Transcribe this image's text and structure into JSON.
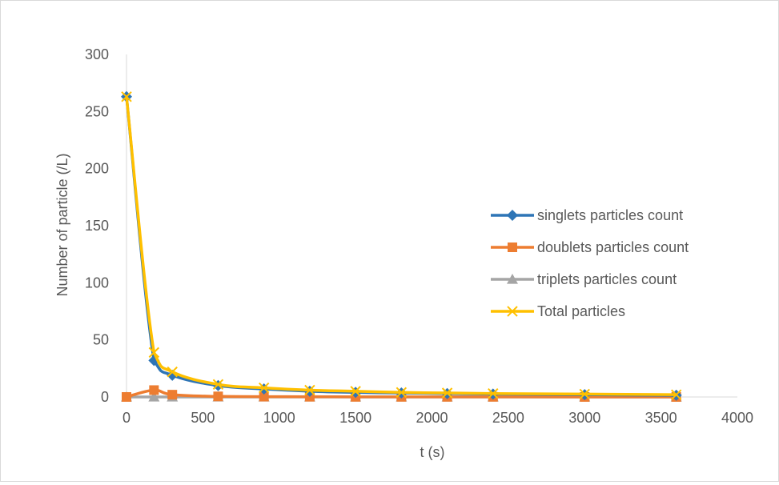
{
  "chart_data": {
    "type": "line",
    "title": "",
    "xlabel": "t (s)",
    "ylabel": "Number of particle (/L)",
    "xlim": [
      0,
      4000
    ],
    "ylim": [
      0,
      300
    ],
    "xticks": [
      0,
      500,
      1000,
      1500,
      2000,
      2500,
      3000,
      3500,
      4000
    ],
    "yticks": [
      0,
      50,
      100,
      150,
      200,
      250,
      300
    ],
    "grid": false,
    "legend_position": "right",
    "x": [
      0,
      180,
      300,
      600,
      900,
      1200,
      1500,
      1800,
      2100,
      2400,
      3000,
      3600
    ],
    "series": [
      {
        "name": "singlets particles count",
        "color": "#2e75b6",
        "marker": "diamond",
        "values": [
          263,
          32,
          19,
          10,
          7,
          5,
          4,
          3.5,
          3,
          2.5,
          2,
          1.5
        ]
      },
      {
        "name": "doublets particles count",
        "color": "#ed7d31",
        "marker": "square",
        "values": [
          0,
          6,
          2,
          0.5,
          0.3,
          0.2,
          0.1,
          0.1,
          0.1,
          0.1,
          0,
          0
        ]
      },
      {
        "name": "triplets particles count",
        "color": "#a5a5a5",
        "marker": "triangle",
        "values": [
          0,
          0,
          0,
          0,
          0,
          0,
          0,
          0,
          0,
          0,
          0,
          0
        ]
      },
      {
        "name": "Total particles",
        "color": "#ffc000",
        "marker": "x",
        "values": [
          263,
          39,
          22,
          11,
          8,
          6,
          5,
          4,
          3.5,
          3,
          2.5,
          2
        ]
      }
    ]
  }
}
